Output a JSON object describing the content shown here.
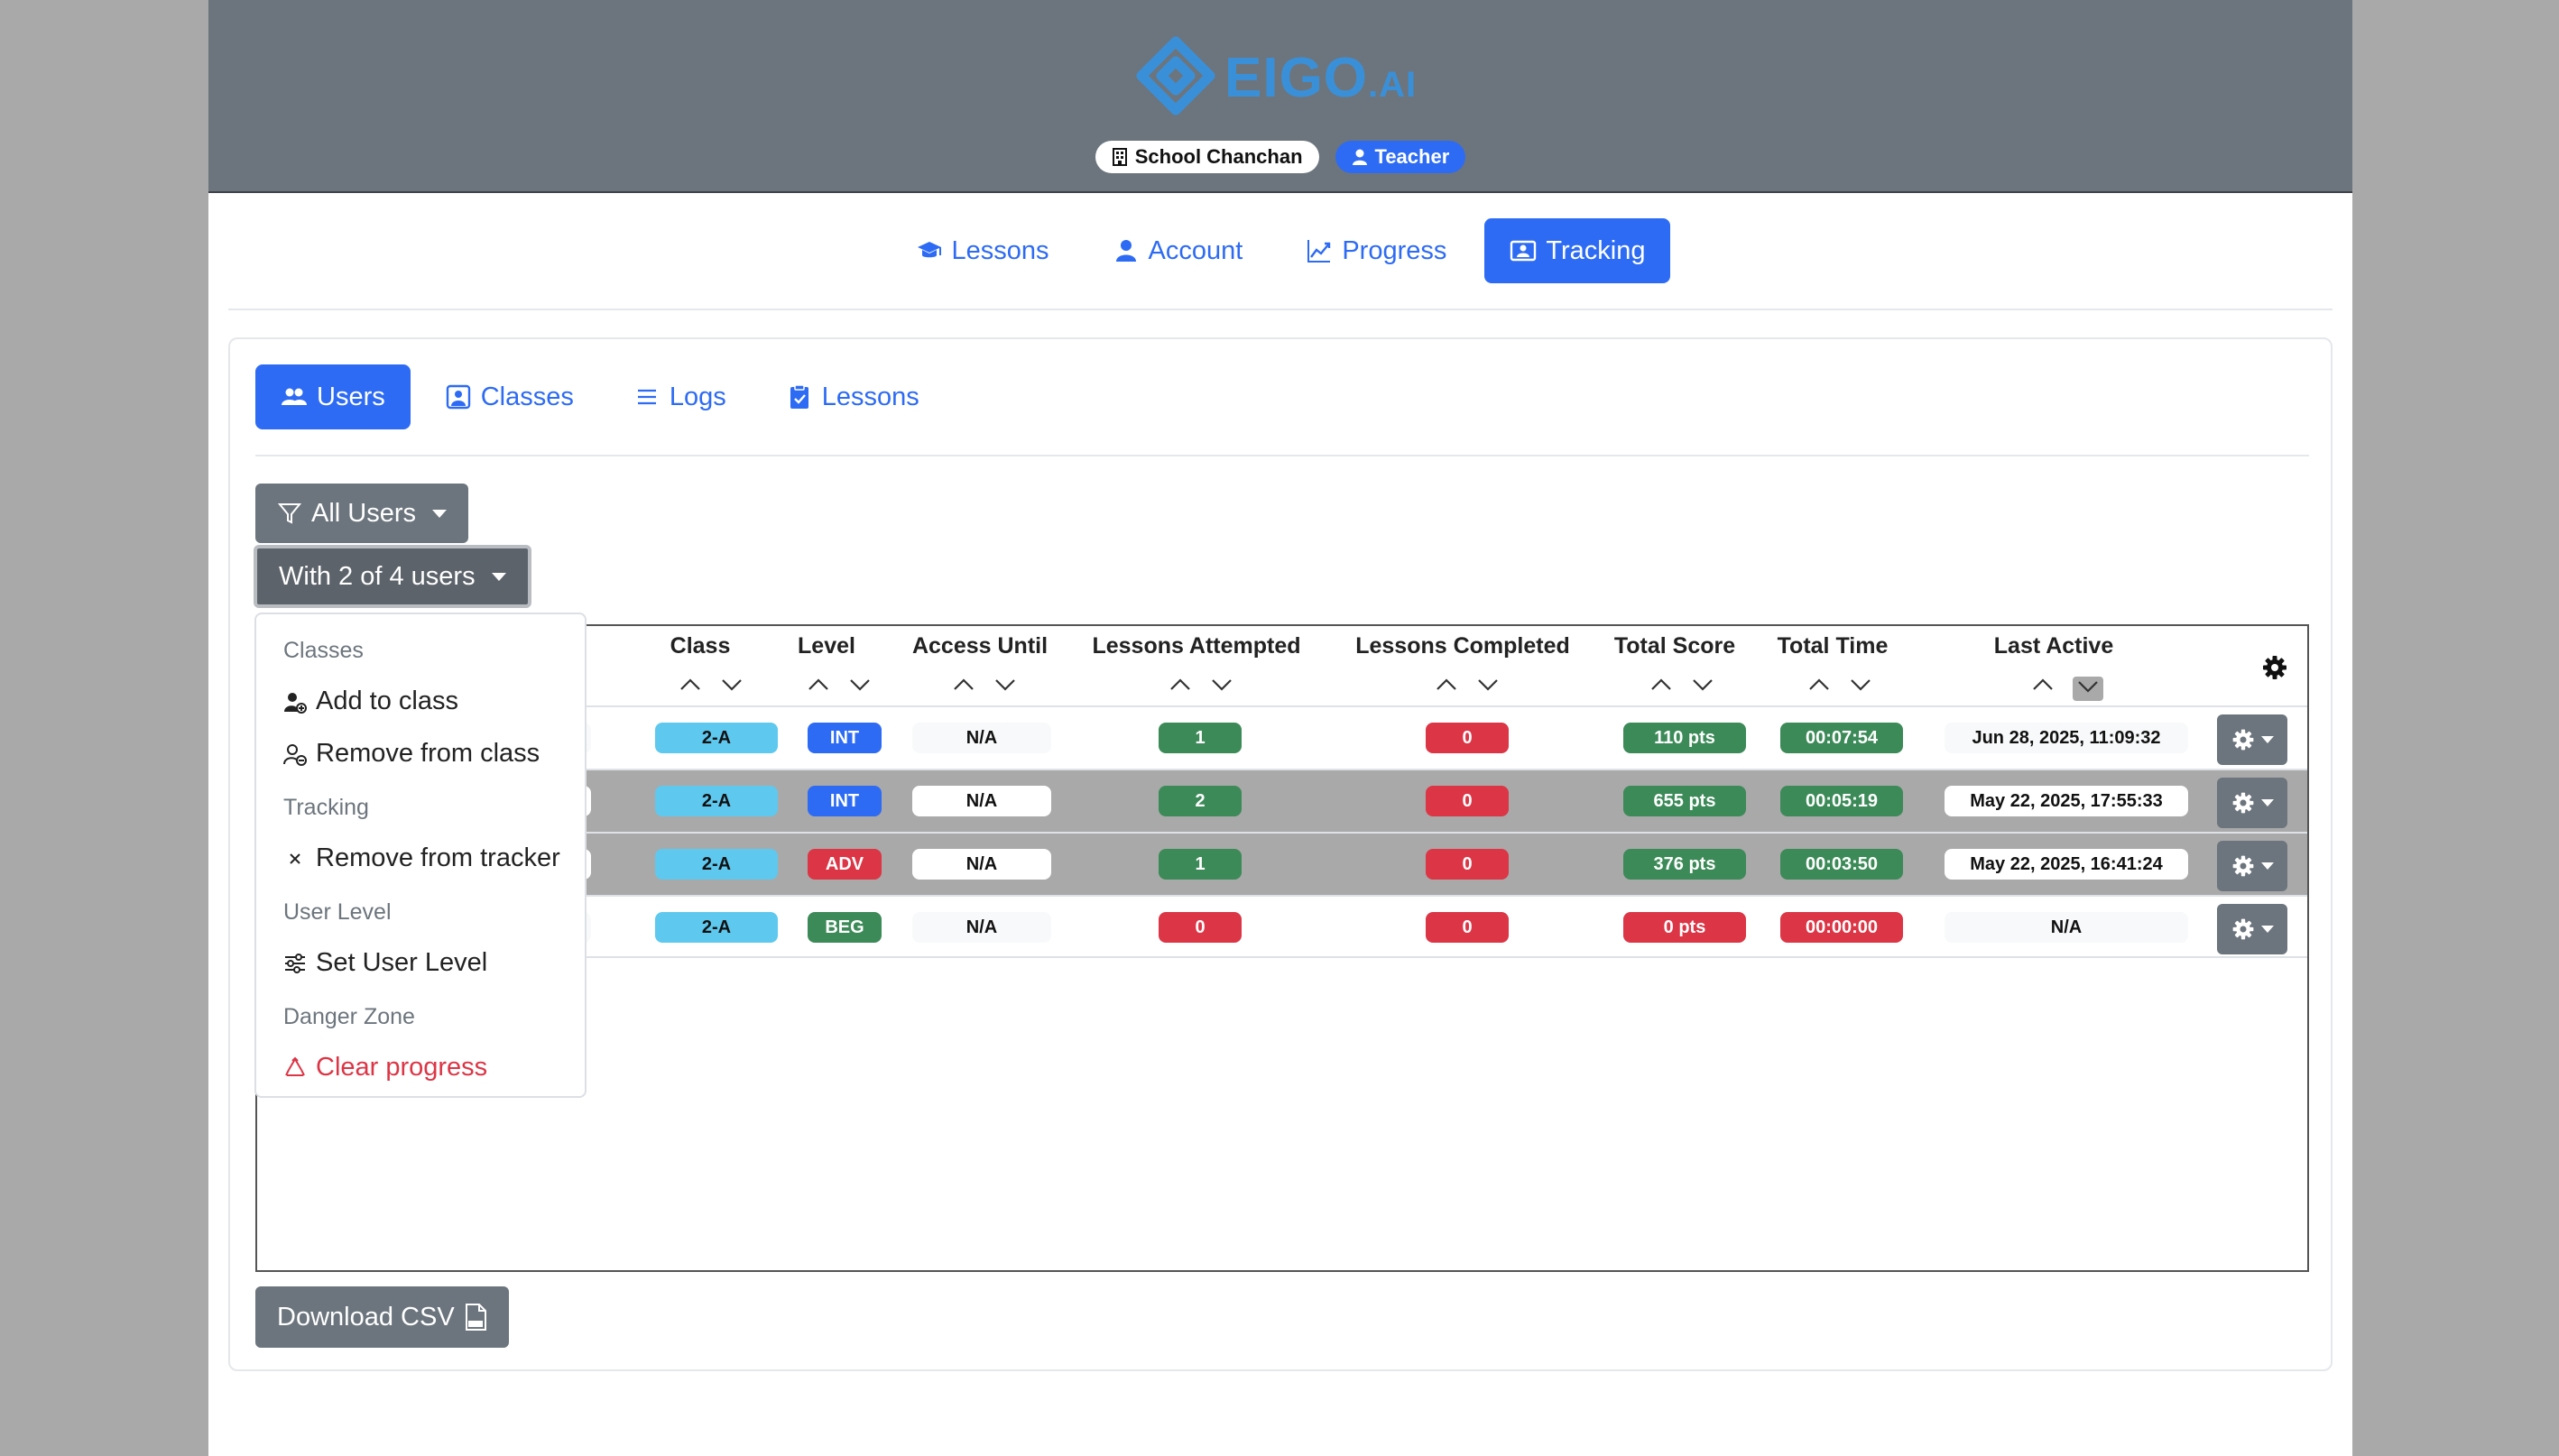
{
  "brand": {
    "name": "EIGO",
    "suffix": ".AI"
  },
  "badges": {
    "school": "School Chanchan",
    "role": "Teacher"
  },
  "top_nav": [
    {
      "label": "Lessons",
      "icon": "graduation-cap-icon",
      "active": false
    },
    {
      "label": "Account",
      "icon": "person-icon",
      "active": false
    },
    {
      "label": "Progress",
      "icon": "graph-up-icon",
      "active": false
    },
    {
      "label": "Tracking",
      "icon": "person-badge-icon",
      "active": true
    }
  ],
  "sub_nav": [
    {
      "label": "Users",
      "icon": "people-icon",
      "active": true
    },
    {
      "label": "Classes",
      "icon": "person-square-icon",
      "active": false
    },
    {
      "label": "Logs",
      "icon": "list-icon",
      "active": false
    },
    {
      "label": "Lessons",
      "icon": "clipboard-check-icon",
      "active": false
    }
  ],
  "filters": {
    "all_users": "All Users",
    "with_selection": "With 2 of 4 users"
  },
  "table": {
    "columns": [
      "Class",
      "Level",
      "Access Until",
      "Lessons Attempted",
      "Lessons Completed",
      "Total Score",
      "Total Time",
      "Last Active"
    ],
    "rows": [
      {
        "class": "2-A",
        "level": "INT",
        "access_until": "N/A",
        "attempted": "1",
        "completed": "0",
        "score": "110 pts",
        "time": "00:07:54",
        "last_active": "Jun 28, 2025, 11:09:32"
      },
      {
        "class": "2-A",
        "level": "INT",
        "access_until": "N/A",
        "attempted": "2",
        "completed": "0",
        "score": "655 pts",
        "time": "00:05:19",
        "last_active": "May 22, 2025, 17:55:33"
      },
      {
        "class": "2-A",
        "level": "ADV",
        "access_until": "N/A",
        "attempted": "1",
        "completed": "0",
        "score": "376 pts",
        "time": "00:03:50",
        "last_active": "May 22, 2025, 16:41:24"
      },
      {
        "class": "2-A",
        "level": "BEG",
        "access_until": "N/A",
        "attempted": "0",
        "completed": "0",
        "score": "0 pts",
        "time": "00:00:00",
        "last_active": "N/A"
      }
    ]
  },
  "menu": {
    "classes_header": "Classes",
    "add_to_class": "Add to class",
    "remove_from_class": "Remove from class",
    "tracking_header": "Tracking",
    "remove_from_tracker": "Remove from tracker",
    "user_level_header": "User Level",
    "set_user_level": "Set User Level",
    "danger_header": "Danger Zone",
    "clear_progress": "Clear progress"
  },
  "download_csv": "Download CSV",
  "colors": {
    "primary": "#2d6bf4",
    "secondary": "#6c757d",
    "success": "#3c8a58",
    "danger": "#dc3545",
    "info": "#5ec8ef"
  }
}
